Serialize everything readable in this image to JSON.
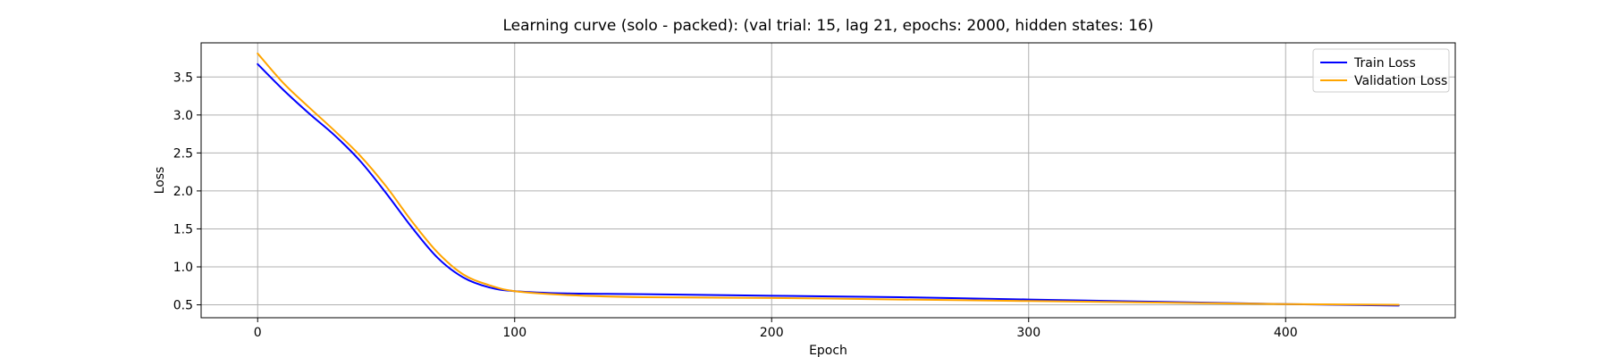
{
  "chart_data": {
    "type": "line",
    "title": "Learning curve (solo - packed): (val trial: 15, lag 21, epochs: 2000, hidden states: 16)",
    "xlabel": "Epoch",
    "ylabel": "Loss",
    "xlim": [
      -22,
      466
    ],
    "ylim": [
      0.33,
      3.95
    ],
    "x_ticks": [
      0,
      100,
      200,
      300,
      400
    ],
    "y_ticks": [
      0.5,
      1.0,
      1.5,
      2.0,
      2.5,
      3.0,
      3.5
    ],
    "y_tick_labels": [
      "0.5",
      "1.0",
      "1.5",
      "2.0",
      "2.5",
      "3.0",
      "3.5"
    ],
    "grid": true,
    "legend_position": "top-right",
    "series": [
      {
        "name": "Train Loss",
        "color": "#0000ff",
        "x": [
          0,
          10,
          20,
          30,
          40,
          50,
          60,
          70,
          80,
          90,
          100,
          120,
          150,
          200,
          250,
          300,
          350,
          400,
          444
        ],
        "values": [
          3.67,
          3.33,
          3.02,
          2.73,
          2.39,
          1.97,
          1.52,
          1.12,
          0.86,
          0.73,
          0.68,
          0.65,
          0.64,
          0.62,
          0.6,
          0.57,
          0.54,
          0.51,
          0.49
        ]
      },
      {
        "name": "Validation Loss",
        "color": "#ffa500",
        "x": [
          0,
          10,
          20,
          30,
          40,
          50,
          60,
          70,
          80,
          90,
          100,
          120,
          150,
          200,
          250,
          300,
          350,
          400,
          444
        ],
        "values": [
          3.81,
          3.42,
          3.1,
          2.79,
          2.46,
          2.06,
          1.6,
          1.19,
          0.9,
          0.76,
          0.68,
          0.63,
          0.6,
          0.59,
          0.57,
          0.55,
          0.53,
          0.51,
          0.5
        ]
      }
    ]
  }
}
